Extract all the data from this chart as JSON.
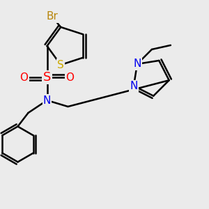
{
  "background_color": "#ebebeb",
  "colors": {
    "Br": "#b8860b",
    "S_th": "#ccaa00",
    "S_sul": "#ff0000",
    "O": "#ff0000",
    "N": "#0000ee",
    "bond": "#000000"
  },
  "bond_width": 1.8,
  "font_size": 11
}
